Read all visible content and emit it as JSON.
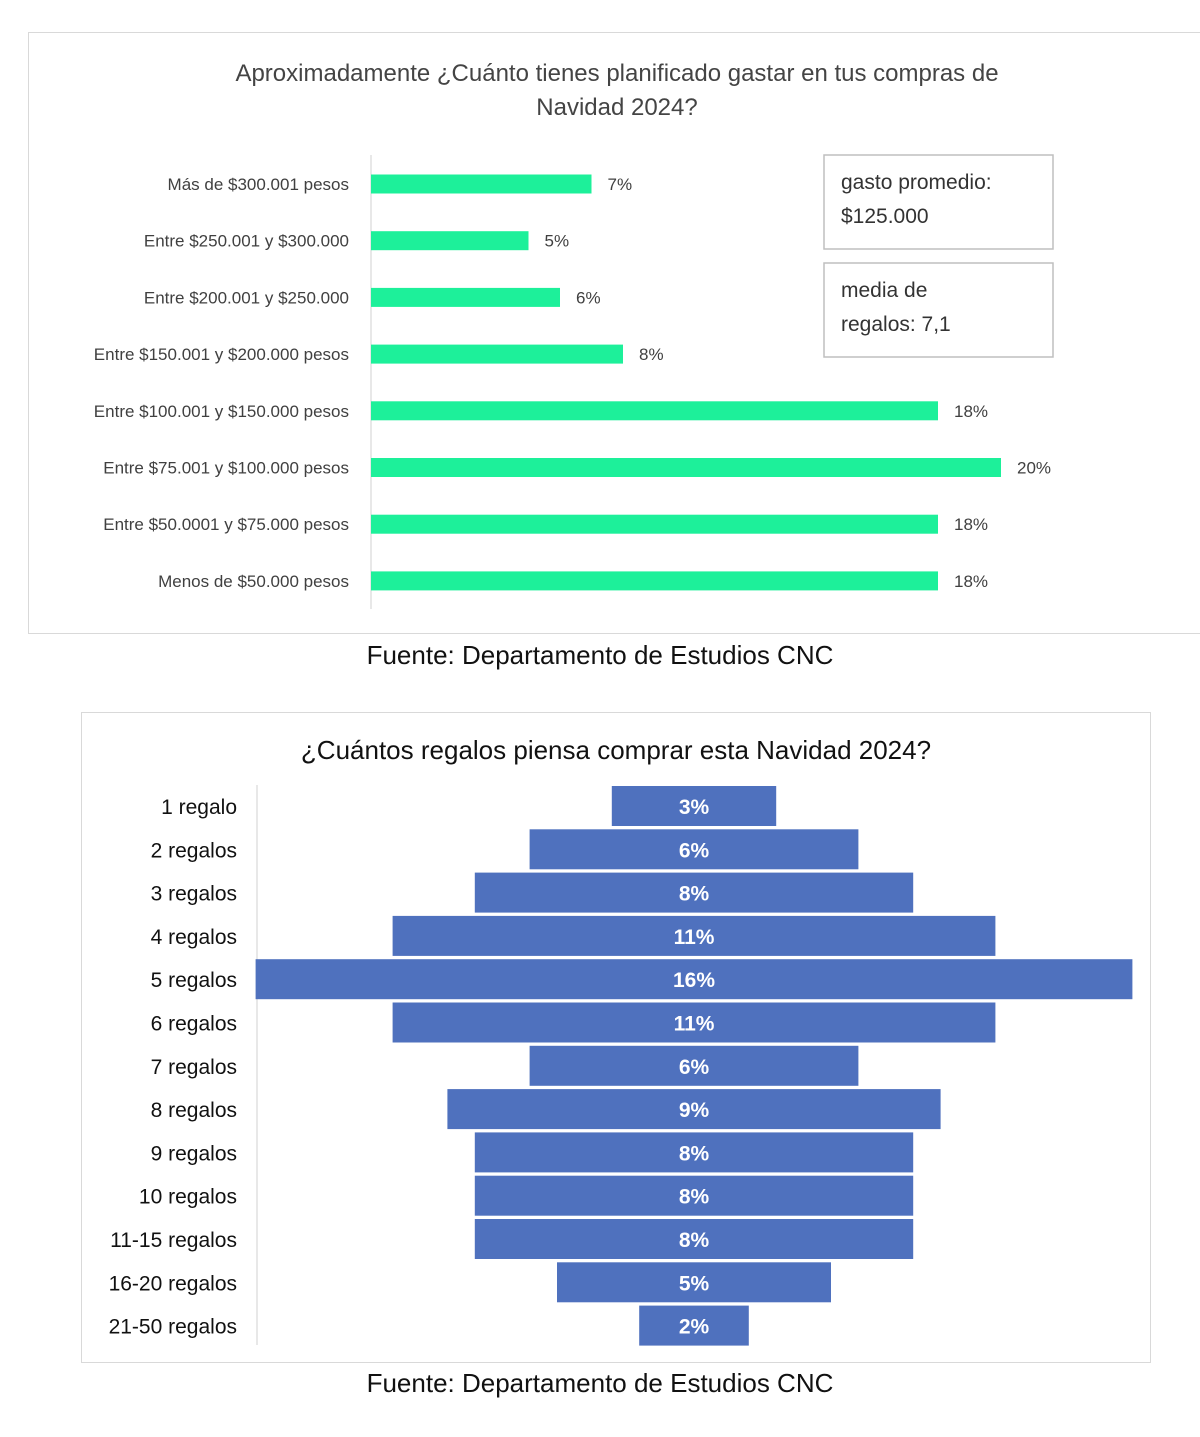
{
  "chart_data": [
    {
      "type": "bar",
      "orientation": "horizontal",
      "title": "Aproximadamente ¿Cuánto tienes planificado gastar   en tus compras de Navidad 2024?",
      "title_lines": [
        "Aproximadamente ¿Cuánto tienes planificado gastar   en tus compras de",
        "Navidad 2024?"
      ],
      "categories": [
        "Más de $300.001 pesos",
        "Entre $250.001 y $300.000",
        "Entre $200.001 y $250.000",
        "Entre $150.001 y $200.000 pesos",
        "Entre $100.001 y $150.000 pesos",
        "Entre $75.001 y $100.000 pesos",
        "Entre $50.0001 y $75.000 pesos",
        "Menos de $50.000 pesos"
      ],
      "values": [
        7,
        5,
        6,
        8,
        18,
        20,
        18,
        18
      ],
      "value_labels": [
        "7%",
        "5%",
        "6%",
        "8%",
        "18%",
        "20%",
        "18%",
        "18%"
      ],
      "unit": "%",
      "xlim": [
        0,
        20
      ],
      "bar_color": "#1df09a",
      "annotations": [
        {
          "lines": [
            "gasto promedio:",
            "$125.000"
          ]
        },
        {
          "lines": [
            "media de",
            "regalos: 7,1"
          ]
        }
      ],
      "grid": false
    },
    {
      "type": "bar",
      "orientation": "horizontal-centered",
      "title": "¿Cuántos regalos piensa comprar esta Navidad 2024?",
      "categories": [
        "1 regalo",
        "2 regalos",
        "3 regalos",
        "4 regalos",
        "5 regalos",
        "6 regalos",
        "7 regalos",
        "8 regalos",
        "9 regalos",
        "10 regalos",
        "11-15 regalos",
        "16-20 regalos",
        "21-50 regalos"
      ],
      "values": [
        3,
        6,
        8,
        11,
        16,
        11,
        6,
        9,
        8,
        8,
        8,
        5,
        2
      ],
      "value_labels": [
        "3%",
        "6%",
        "8%",
        "11%",
        "16%",
        "11%",
        "6%",
        "9%",
        "8%",
        "8%",
        "8%",
        "5%",
        "2%"
      ],
      "unit": "%",
      "bar_color": "#4f71be",
      "grid": false
    }
  ],
  "sources": [
    "Fuente: Departamento de Estudios CNC",
    "Fuente: Departamento de Estudios CNC"
  ]
}
